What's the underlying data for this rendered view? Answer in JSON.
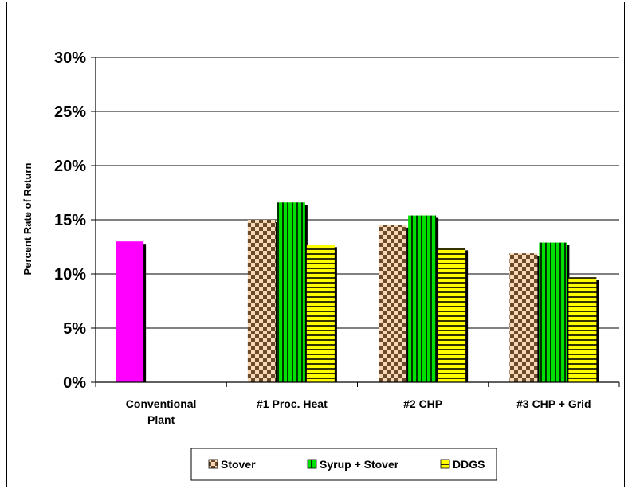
{
  "chart_data": {
    "type": "bar",
    "title": "",
    "xlabel": "",
    "ylabel": "Percent Rate of Return",
    "ylim": [
      0,
      30
    ],
    "yticks": [
      "0%",
      "5%",
      "10%",
      "15%",
      "20%",
      "25%",
      "30%"
    ],
    "ytick_values": [
      0,
      5,
      10,
      15,
      20,
      25,
      30
    ],
    "categories": [
      [
        "Conventional",
        "Plant"
      ],
      [
        "#1 Proc. Heat"
      ],
      [
        "#2 CHP"
      ],
      [
        "#3 CHP + Grid"
      ]
    ],
    "single_series": {
      "values": [
        13.0,
        null,
        null,
        null
      ],
      "color": "#ff00ff"
    },
    "series": [
      {
        "name": "Stover",
        "values": [
          null,
          15.0,
          14.5,
          11.9
        ],
        "color": "#f4c9a0",
        "pattern": "checker"
      },
      {
        "name": "Syrup + Stover",
        "values": [
          null,
          16.6,
          15.4,
          12.9
        ],
        "color": "#00dd00",
        "pattern": "vstripe"
      },
      {
        "name": "DDGS",
        "values": [
          null,
          12.7,
          12.4,
          9.7
        ],
        "color": "#ffff00",
        "pattern": "hstripe"
      }
    ],
    "grid": true,
    "legend_position": "bottom"
  }
}
